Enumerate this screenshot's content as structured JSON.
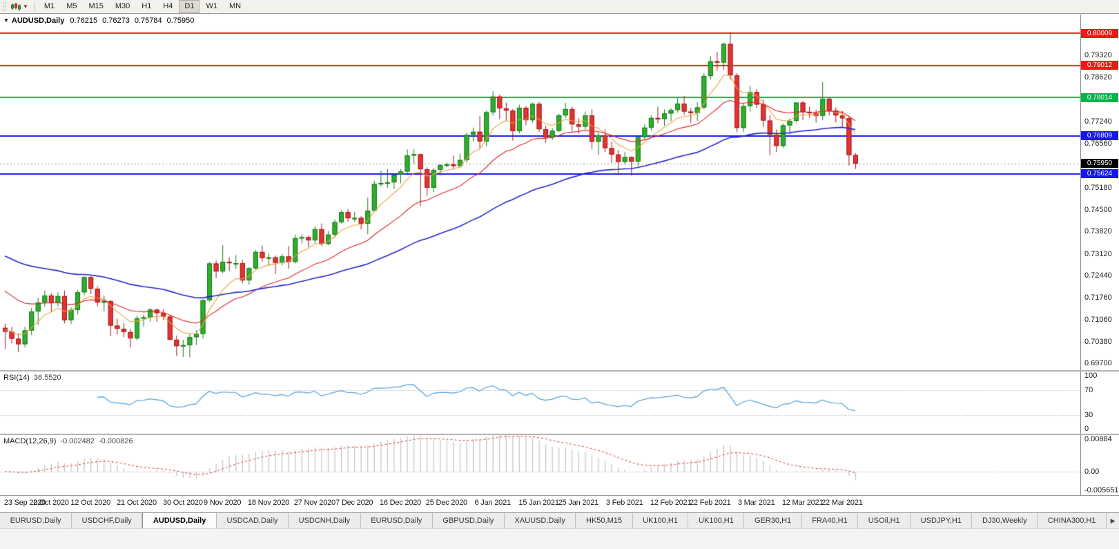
{
  "toolbar": {
    "timeframes": [
      "M1",
      "M5",
      "M15",
      "M30",
      "H1",
      "H4",
      "D1",
      "W1",
      "MN"
    ],
    "active_timeframe": "D1"
  },
  "chart_header": {
    "collapse_icon": "▼",
    "symbol": "AUDUSD,Daily",
    "open": "0.76215",
    "high": "0.76273",
    "low": "0.75784",
    "close": "0.75950"
  },
  "price_scale": {
    "max": 0.806,
    "min": 0.695,
    "ticks": [
      "0.79320",
      "0.78620",
      "0.77240",
      "0.76560",
      "0.75180",
      "0.74500",
      "0.73820",
      "0.73120",
      "0.72440",
      "0.71760",
      "0.71060",
      "0.70380",
      "0.69700"
    ]
  },
  "hlines": [
    {
      "label": "0.80009",
      "price": 0.80009,
      "color": "#f21616"
    },
    {
      "label": "0.79012",
      "price": 0.79012,
      "color": "#f21616"
    },
    {
      "label": "0.78014",
      "price": 0.78014,
      "color": "#00b44a"
    },
    {
      "label": "0.76809",
      "price": 0.76809,
      "color": "#1515f0"
    },
    {
      "label": "0.75624",
      "price": 0.75624,
      "color": "#1515f0"
    }
  ],
  "current_price": {
    "label": "0.75950",
    "price": 0.7595,
    "bg": "#000000",
    "line_color": "#8a8a8a"
  },
  "rsi_panel": {
    "name": "RSI(14)",
    "value": "36.5520",
    "period": 14,
    "levels": [
      70,
      30
    ],
    "ticks": [
      "100",
      "70",
      "30",
      "0"
    ],
    "color": "#4d9fdd"
  },
  "macd_panel": {
    "name": "MACD(12,26,9)",
    "main_value": "-0.002482",
    "signal_value": "-0.000826",
    "max": 0.00884,
    "min": -0.005651,
    "ticks": [
      "0.00884",
      "0.00",
      "-0.005651"
    ],
    "hist_color": "#c2c2c2",
    "signal_color": "#e03030"
  },
  "time_axis": [
    {
      "index": 0,
      "label": "23 Sep 2020"
    },
    {
      "index": 7,
      "label": "2 Oct 2020"
    },
    {
      "index": 13,
      "label": "12 Oct 2020"
    },
    {
      "index": 20,
      "label": "21 Oct 2020"
    },
    {
      "index": 27,
      "label": "30 Oct 2020"
    },
    {
      "index": 33,
      "label": "9 Nov 2020"
    },
    {
      "index": 40,
      "label": "18 Nov 2020"
    },
    {
      "index": 47,
      "label": "27 Nov 2020"
    },
    {
      "index": 53,
      "label": "7 Dec 2020"
    },
    {
      "index": 60,
      "label": "16 Dec 2020"
    },
    {
      "index": 67,
      "label": "25 Dec 2020"
    },
    {
      "index": 74,
      "label": "6 Jan 2021"
    },
    {
      "index": 81,
      "label": "15 Jan 2021"
    },
    {
      "index": 87,
      "label": "25 Jan 2021"
    },
    {
      "index": 94,
      "label": "3 Feb 2021"
    },
    {
      "index": 101,
      "label": "12 Feb 2021"
    },
    {
      "index": 107,
      "label": "22 Feb 2021"
    },
    {
      "index": 114,
      "label": "3 Mar 2021"
    },
    {
      "index": 121,
      "label": "12 Mar 2021"
    },
    {
      "index": 127,
      "label": "22 Mar 2021"
    }
  ],
  "tabs": {
    "items": [
      "EURUSD,Daily",
      "USDCHF,Daily",
      "AUDUSD,Daily",
      "USDCAD,Daily",
      "USDCNH,Daily",
      "EURUSD,Daily",
      "GBPUSD,Daily",
      "XAUUSD,Daily",
      "HK50,M15",
      "UK100,H1",
      "UK100,H1",
      "GER30,H1",
      "FRA40,H1",
      "USOil,H1",
      "USDJPY,H1",
      "DJ30,Weekly",
      "CHINA300,H1"
    ],
    "active_index": 2,
    "scroll_right_icon": "▶"
  },
  "colors": {
    "up": "#2fae2f",
    "up_border": "#157815",
    "down": "#e23434",
    "down_border": "#a41616",
    "grid": "#bdbdbd"
  },
  "chart_data": {
    "type": "candlestick",
    "symbol": "AUDUSD",
    "timeframe": "Daily",
    "overlays": [
      {
        "name": "ma-fast",
        "type": "ema",
        "period": 7,
        "seed": 0.708,
        "color": "#e8a33d",
        "width": 1.1
      },
      {
        "name": "ma-mid",
        "type": "ema",
        "period": 20,
        "seed": 0.721,
        "color": "#dd2222",
        "width": 1.1
      },
      {
        "name": "ma-slow",
        "type": "ema",
        "period": 55,
        "seed": 0.7315,
        "color": "#2323cc",
        "width": 1.6
      }
    ],
    "indicators": [
      {
        "type": "rsi",
        "period": 14,
        "current": 36.552
      },
      {
        "type": "macd",
        "fast": 12,
        "slow": 26,
        "signal": 9,
        "current_main": -0.002482,
        "current_signal": -0.000826
      }
    ],
    "candles": [
      [
        0.7082,
        0.7095,
        0.7016,
        0.707
      ],
      [
        0.707,
        0.7085,
        0.7034,
        0.7048
      ],
      [
        0.7048,
        0.7064,
        0.7006,
        0.7031
      ],
      [
        0.7031,
        0.7085,
        0.7021,
        0.7074
      ],
      [
        0.7074,
        0.7144,
        0.706,
        0.7133
      ],
      [
        0.7133,
        0.7176,
        0.7091,
        0.7161
      ],
      [
        0.7161,
        0.7198,
        0.7148,
        0.7183
      ],
      [
        0.7183,
        0.7191,
        0.7131,
        0.7159
      ],
      [
        0.7159,
        0.7193,
        0.7149,
        0.7181
      ],
      [
        0.7181,
        0.7199,
        0.7096,
        0.7106
      ],
      [
        0.7106,
        0.7146,
        0.7094,
        0.7138
      ],
      [
        0.7138,
        0.72,
        0.7124,
        0.7193
      ],
      [
        0.7193,
        0.7243,
        0.7184,
        0.724
      ],
      [
        0.724,
        0.7244,
        0.7187,
        0.7204
      ],
      [
        0.7204,
        0.7211,
        0.7149,
        0.7161
      ],
      [
        0.7161,
        0.7183,
        0.7133,
        0.7165
      ],
      [
        0.7165,
        0.7169,
        0.7056,
        0.7089
      ],
      [
        0.7089,
        0.7111,
        0.7061,
        0.7079
      ],
      [
        0.7079,
        0.7097,
        0.7053,
        0.7069
      ],
      [
        0.7069,
        0.7079,
        0.7021,
        0.7049
      ],
      [
        0.7049,
        0.712,
        0.7043,
        0.7112
      ],
      [
        0.7112,
        0.7123,
        0.7086,
        0.7115
      ],
      [
        0.7115,
        0.7143,
        0.7102,
        0.7139
      ],
      [
        0.7139,
        0.7141,
        0.7101,
        0.7128
      ],
      [
        0.7128,
        0.714,
        0.7106,
        0.7117
      ],
      [
        0.7117,
        0.7122,
        0.7043,
        0.7045
      ],
      [
        0.7045,
        0.7058,
        0.6994,
        0.7025
      ],
      [
        0.7025,
        0.7045,
        0.6991,
        0.7028
      ],
      [
        0.7028,
        0.7064,
        0.699,
        0.7053
      ],
      [
        0.7053,
        0.7074,
        0.7028,
        0.7063
      ],
      [
        0.7063,
        0.7171,
        0.7049,
        0.7168
      ],
      [
        0.7168,
        0.7288,
        0.7164,
        0.7283
      ],
      [
        0.7283,
        0.7292,
        0.7237,
        0.7258
      ],
      [
        0.7258,
        0.734,
        0.7252,
        0.7288
      ],
      [
        0.7288,
        0.7302,
        0.7259,
        0.7284
      ],
      [
        0.7284,
        0.7309,
        0.7266,
        0.7284
      ],
      [
        0.7284,
        0.7294,
        0.7221,
        0.723
      ],
      [
        0.723,
        0.7272,
        0.7217,
        0.7268
      ],
      [
        0.7268,
        0.7325,
        0.7263,
        0.7319
      ],
      [
        0.7319,
        0.7339,
        0.7288,
        0.73
      ],
      [
        0.73,
        0.7314,
        0.7275,
        0.7302
      ],
      [
        0.7302,
        0.7308,
        0.725,
        0.7285
      ],
      [
        0.7285,
        0.7312,
        0.7277,
        0.7305
      ],
      [
        0.7305,
        0.7337,
        0.7267,
        0.7288
      ],
      [
        0.7288,
        0.7373,
        0.7283,
        0.7362
      ],
      [
        0.7362,
        0.7374,
        0.7345,
        0.7365
      ],
      [
        0.7365,
        0.7369,
        0.7334,
        0.7355
      ],
      [
        0.7355,
        0.7399,
        0.7345,
        0.739
      ],
      [
        0.739,
        0.7408,
        0.7338,
        0.7344
      ],
      [
        0.7344,
        0.7384,
        0.734,
        0.7373
      ],
      [
        0.7373,
        0.742,
        0.7363,
        0.7412
      ],
      [
        0.7412,
        0.7449,
        0.7408,
        0.7443
      ],
      [
        0.7443,
        0.7453,
        0.7413,
        0.7424
      ],
      [
        0.7424,
        0.7444,
        0.7413,
        0.7425
      ],
      [
        0.7425,
        0.7431,
        0.7389,
        0.7407
      ],
      [
        0.7407,
        0.7489,
        0.7374,
        0.7448
      ],
      [
        0.7448,
        0.7541,
        0.7443,
        0.7531
      ],
      [
        0.7531,
        0.7573,
        0.7523,
        0.7534
      ],
      [
        0.7534,
        0.7578,
        0.7519,
        0.7536
      ],
      [
        0.7536,
        0.7564,
        0.7515,
        0.756
      ],
      [
        0.756,
        0.7578,
        0.7533,
        0.757
      ],
      [
        0.757,
        0.7639,
        0.7565,
        0.762
      ],
      [
        0.762,
        0.764,
        0.7595,
        0.7624
      ],
      [
        0.7624,
        0.7625,
        0.7462,
        0.7577
      ],
      [
        0.7577,
        0.7583,
        0.7494,
        0.7519
      ],
      [
        0.7519,
        0.758,
        0.7506,
        0.7575
      ],
      [
        0.7575,
        0.7594,
        0.7558,
        0.759
      ],
      [
        0.759,
        0.7598,
        0.7583,
        0.7592
      ],
      [
        0.7592,
        0.762,
        0.7578,
        0.7587
      ],
      [
        0.7587,
        0.7625,
        0.7581,
        0.7606
      ],
      [
        0.7606,
        0.769,
        0.7599,
        0.7685
      ],
      [
        0.7685,
        0.7707,
        0.7664,
        0.7694
      ],
      [
        0.7694,
        0.7743,
        0.7642,
        0.7664
      ],
      [
        0.7664,
        0.776,
        0.7648,
        0.7755
      ],
      [
        0.7755,
        0.782,
        0.7745,
        0.7804
      ],
      [
        0.7804,
        0.781,
        0.7734,
        0.7767
      ],
      [
        0.7767,
        0.7785,
        0.7729,
        0.776
      ],
      [
        0.776,
        0.7765,
        0.7666,
        0.7696
      ],
      [
        0.7696,
        0.7779,
        0.7689,
        0.7769
      ],
      [
        0.7769,
        0.7774,
        0.7715,
        0.773
      ],
      [
        0.773,
        0.7785,
        0.7722,
        0.7781
      ],
      [
        0.7781,
        0.7787,
        0.7693,
        0.7702
      ],
      [
        0.7702,
        0.7713,
        0.7659,
        0.7676
      ],
      [
        0.7676,
        0.7706,
        0.7668,
        0.7697
      ],
      [
        0.7697,
        0.775,
        0.7693,
        0.7745
      ],
      [
        0.7745,
        0.7784,
        0.7736,
        0.7765
      ],
      [
        0.7765,
        0.7773,
        0.7696,
        0.7717
      ],
      [
        0.7717,
        0.7736,
        0.7688,
        0.771
      ],
      [
        0.771,
        0.7757,
        0.7702,
        0.7745
      ],
      [
        0.7745,
        0.7764,
        0.764,
        0.7663
      ],
      [
        0.7663,
        0.7692,
        0.7622,
        0.7683
      ],
      [
        0.7683,
        0.7702,
        0.763,
        0.7643
      ],
      [
        0.7643,
        0.7663,
        0.7597,
        0.7623
      ],
      [
        0.7623,
        0.7637,
        0.7564,
        0.76
      ],
      [
        0.76,
        0.7631,
        0.7592,
        0.7615
      ],
      [
        0.7615,
        0.7617,
        0.7557,
        0.7601
      ],
      [
        0.7601,
        0.7679,
        0.7587,
        0.7677
      ],
      [
        0.7677,
        0.7717,
        0.7669,
        0.7707
      ],
      [
        0.7707,
        0.7745,
        0.7698,
        0.7737
      ],
      [
        0.7737,
        0.7773,
        0.772,
        0.7734
      ],
      [
        0.7734,
        0.7764,
        0.7713,
        0.7751
      ],
      [
        0.7751,
        0.7768,
        0.7727,
        0.7762
      ],
      [
        0.7762,
        0.7799,
        0.7754,
        0.7782
      ],
      [
        0.7782,
        0.7805,
        0.7747,
        0.7757
      ],
      [
        0.7757,
        0.7768,
        0.7722,
        0.7753
      ],
      [
        0.7753,
        0.7786,
        0.7728,
        0.777
      ],
      [
        0.777,
        0.7877,
        0.7764,
        0.7868
      ],
      [
        0.7868,
        0.793,
        0.7857,
        0.7914
      ],
      [
        0.7914,
        0.7944,
        0.7884,
        0.791
      ],
      [
        0.791,
        0.7973,
        0.7887,
        0.7968
      ],
      [
        0.7968,
        0.8006,
        0.7856,
        0.787
      ],
      [
        0.787,
        0.7877,
        0.7692,
        0.7706
      ],
      [
        0.7706,
        0.7784,
        0.7693,
        0.7774
      ],
      [
        0.7774,
        0.7838,
        0.7757,
        0.7818
      ],
      [
        0.7818,
        0.7827,
        0.7767,
        0.7779
      ],
      [
        0.7779,
        0.7794,
        0.7709,
        0.7729
      ],
      [
        0.7729,
        0.7747,
        0.7621,
        0.7685
      ],
      [
        0.7685,
        0.7701,
        0.7631,
        0.765
      ],
      [
        0.765,
        0.772,
        0.7644,
        0.7714
      ],
      [
        0.7714,
        0.7735,
        0.7686,
        0.7728
      ],
      [
        0.7728,
        0.7786,
        0.7723,
        0.7785
      ],
      [
        0.7785,
        0.779,
        0.773,
        0.7756
      ],
      [
        0.7756,
        0.7772,
        0.7738,
        0.7752
      ],
      [
        0.7752,
        0.7763,
        0.7723,
        0.7744
      ],
      [
        0.7744,
        0.7849,
        0.773,
        0.7797
      ],
      [
        0.7797,
        0.7801,
        0.7745,
        0.776
      ],
      [
        0.776,
        0.777,
        0.7723,
        0.7745
      ],
      [
        0.7745,
        0.7759,
        0.7708,
        0.7736
      ],
      [
        0.7736,
        0.7743,
        0.7588,
        0.76215
      ],
      [
        0.76215,
        0.76273,
        0.75784,
        0.7595
      ]
    ]
  }
}
